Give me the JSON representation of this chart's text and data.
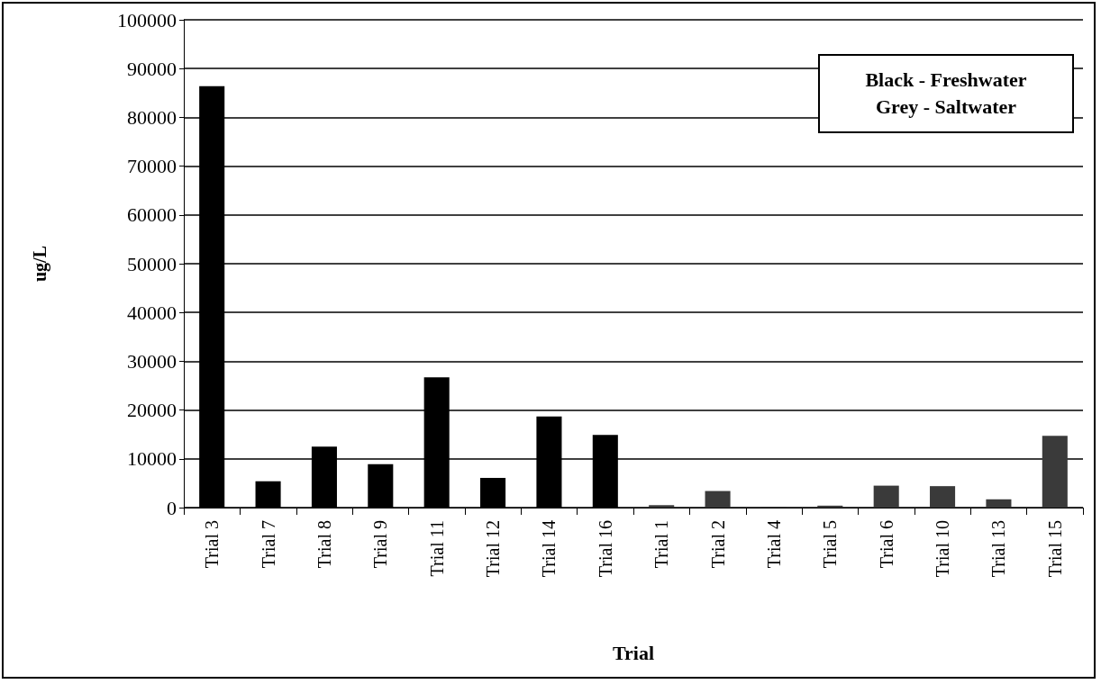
{
  "chart_data": {
    "type": "bar",
    "xlabel": "Trial",
    "ylabel": "ug/L",
    "categories": [
      "Trial 3",
      "Trial 7",
      "Trial 8",
      "Trial 9",
      "Trial 11",
      "Trial 12",
      "Trial 14",
      "Trial 16",
      "Trial 1",
      "Trial 2",
      "Trial 4",
      "Trial 5",
      "Trial 6",
      "Trial 10",
      "Trial 13",
      "Trial 15"
    ],
    "values": [
      86400,
      5400,
      12500,
      8900,
      26700,
      6100,
      18700,
      14900,
      500,
      3400,
      100,
      400,
      4500,
      4400,
      1700,
      14700
    ],
    "colors": [
      "#000000",
      "#000000",
      "#000000",
      "#000000",
      "#000000",
      "#000000",
      "#000000",
      "#000000",
      "#3a3a3a",
      "#3a3a3a",
      "#3a3a3a",
      "#3a3a3a",
      "#3a3a3a",
      "#3a3a3a",
      "#3a3a3a",
      "#3a3a3a"
    ],
    "ylim": [
      0,
      100000
    ],
    "yticks": [
      0,
      10000,
      20000,
      30000,
      40000,
      50000,
      60000,
      70000,
      80000,
      90000,
      100000
    ],
    "grid": "y",
    "annotations": [
      "Black - Freshwater",
      "Grey - Saltwater"
    ]
  }
}
